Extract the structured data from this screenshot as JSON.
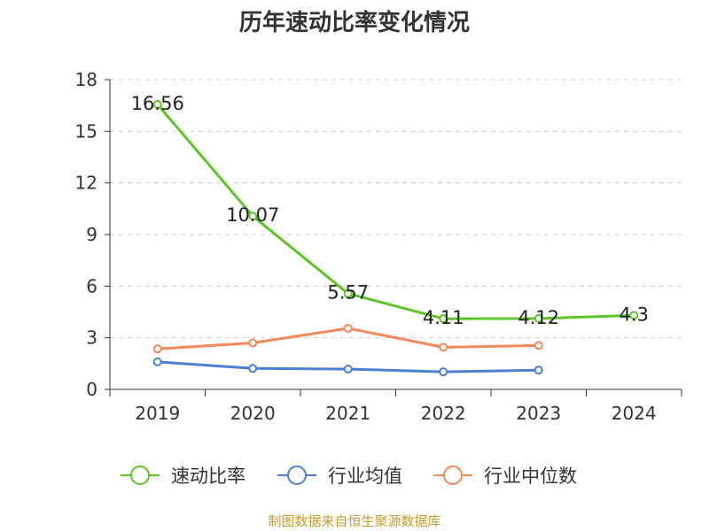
{
  "chart_data": {
    "type": "line",
    "title": "历年速动比率变化情况",
    "categories": [
      "2019",
      "2020",
      "2021",
      "2022",
      "2023",
      "2024"
    ],
    "ylim": [
      0,
      18
    ],
    "yticks": [
      0,
      3,
      6,
      9,
      12,
      15,
      18
    ],
    "grid": true,
    "legend_position": "bottom",
    "series": [
      {
        "name": "速动比率",
        "color": "#5cc624",
        "values": [
          16.56,
          10.07,
          5.57,
          4.11,
          4.12,
          4.3
        ],
        "labels": [
          "16.56",
          "10.07",
          "5.57",
          "4.11",
          "4.12",
          "4.3"
        ]
      },
      {
        "name": "行业均值",
        "color": "#4b7fd6",
        "values": [
          1.6,
          1.22,
          1.18,
          1.02,
          1.12,
          null
        ]
      },
      {
        "name": "行业中位数",
        "color": "#f4885a",
        "values": [
          2.35,
          2.7,
          3.55,
          2.45,
          2.55,
          null
        ]
      }
    ],
    "source": "制图数据来自恒生聚源数据库"
  }
}
